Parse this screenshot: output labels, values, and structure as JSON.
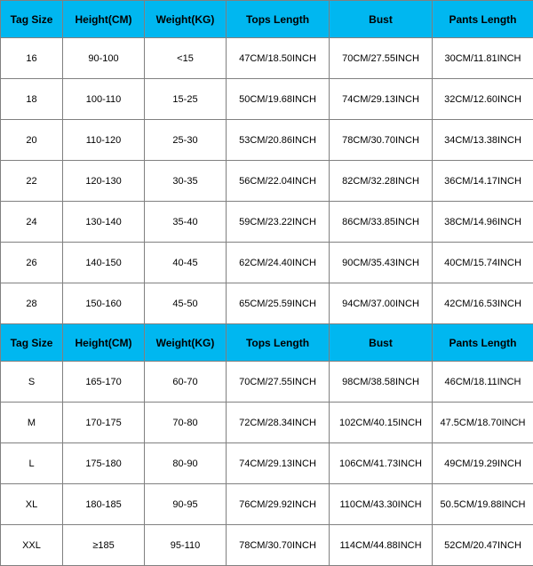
{
  "header_bg": "#00b7f0",
  "border_color": "#808080",
  "text_color": "#000000",
  "columns": [
    "Tag Size",
    "Height(CM)",
    "Weight(KG)",
    "Tops Length",
    "Bust",
    "Pants Length"
  ],
  "section1": {
    "rows": [
      [
        "16",
        "90-100",
        "<15",
        "47CM/18.50INCH",
        "70CM/27.55INCH",
        "30CM/11.81INCH"
      ],
      [
        "18",
        "100-110",
        "15-25",
        "50CM/19.68INCH",
        "74CM/29.13INCH",
        "32CM/12.60INCH"
      ],
      [
        "20",
        "110-120",
        "25-30",
        "53CM/20.86INCH",
        "78CM/30.70INCH",
        "34CM/13.38INCH"
      ],
      [
        "22",
        "120-130",
        "30-35",
        "56CM/22.04INCH",
        "82CM/32.28INCH",
        "36CM/14.17INCH"
      ],
      [
        "24",
        "130-140",
        "35-40",
        "59CM/23.22INCH",
        "86CM/33.85INCH",
        "38CM/14.96INCH"
      ],
      [
        "26",
        "140-150",
        "40-45",
        "62CM/24.40INCH",
        "90CM/35.43INCH",
        "40CM/15.74INCH"
      ],
      [
        "28",
        "150-160",
        "45-50",
        "65CM/25.59INCH",
        "94CM/37.00INCH",
        "42CM/16.53INCH"
      ]
    ]
  },
  "section2": {
    "rows": [
      [
        "S",
        "165-170",
        "60-70",
        "70CM/27.55INCH",
        "98CM/38.58INCH",
        "46CM/18.11INCH"
      ],
      [
        "M",
        "170-175",
        "70-80",
        "72CM/28.34INCH",
        "102CM/40.15INCH",
        "47.5CM/18.70INCH"
      ],
      [
        "L",
        "175-180",
        "80-90",
        "74CM/29.13INCH",
        "106CM/41.73INCH",
        "49CM/19.29INCH"
      ],
      [
        "XL",
        "180-185",
        "90-95",
        "76CM/29.92INCH",
        "110CM/43.30INCH",
        "50.5CM/19.88INCH"
      ],
      [
        "XXL",
        "≥185",
        "95-110",
        "78CM/30.70INCH",
        "114CM/44.88INCH",
        "52CM/20.47INCH"
      ]
    ]
  }
}
